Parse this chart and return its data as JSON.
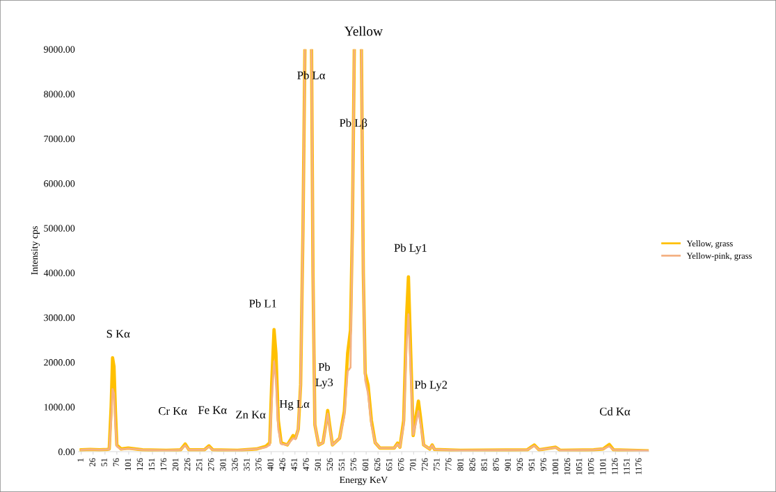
{
  "chart_data": {
    "type": "line",
    "title": "Yellow",
    "xlabel": "Energy KeV",
    "ylabel": "Intensity cps",
    "x": [
      1,
      20,
      40,
      55,
      60,
      64,
      67,
      70,
      73,
      76,
      85,
      100,
      130,
      180,
      210,
      220,
      228,
      260,
      270,
      278,
      330,
      370,
      390,
      398,
      402,
      407,
      411,
      416,
      422,
      435,
      447,
      452,
      458,
      463,
      468,
      472,
      479,
      486,
      489,
      493,
      501,
      510,
      516,
      520,
      524,
      530,
      545,
      555,
      562,
      568,
      572,
      576,
      583,
      591,
      595,
      599,
      605,
      612,
      620,
      630,
      660,
      667,
      672,
      680,
      686,
      690,
      694,
      700,
      706,
      711,
      715,
      722,
      735,
      740,
      745,
      800,
      940,
      955,
      965,
      1000,
      1010,
      1080,
      1100,
      1113,
      1122,
      1196
    ],
    "series": [
      {
        "name": "Yellow, grass",
        "color": "#ffc000",
        "values": [
          40,
          50,
          40,
          50,
          60,
          1000,
          2100,
          1900,
          900,
          150,
          60,
          80,
          40,
          30,
          40,
          170,
          40,
          40,
          130,
          40,
          30,
          60,
          120,
          200,
          1500,
          2730,
          2200,
          700,
          200,
          150,
          360,
          300,
          500,
          1500,
          5000,
          9000,
          null,
          9000,
          4000,
          600,
          150,
          200,
          600,
          920,
          600,
          150,
          300,
          900,
          2200,
          2720,
          5000,
          9000,
          null,
          9000,
          4000,
          1750,
          1490,
          700,
          200,
          80,
          80,
          190,
          100,
          700,
          3000,
          3910,
          2500,
          360,
          800,
          1130,
          800,
          150,
          60,
          150,
          50,
          30,
          40,
          150,
          40,
          100,
          30,
          40,
          60,
          160,
          40,
          20
        ]
      },
      {
        "name": "Yellow-pink, grass",
        "color": "#f4b183",
        "values": [
          40,
          50,
          40,
          50,
          50,
          700,
          1400,
          1300,
          600,
          120,
          50,
          70,
          40,
          30,
          40,
          140,
          40,
          40,
          110,
          40,
          30,
          60,
          100,
          150,
          1100,
          2020,
          1600,
          500,
          170,
          150,
          300,
          280,
          500,
          1500,
          5000,
          9000,
          null,
          9000,
          4000,
          600,
          150,
          200,
          550,
          850,
          550,
          150,
          300,
          800,
          1800,
          1880,
          5000,
          9000,
          null,
          9000,
          4000,
          1600,
          1300,
          600,
          200,
          80,
          80,
          170,
          100,
          600,
          2400,
          3070,
          2000,
          380,
          650,
          910,
          650,
          150,
          60,
          140,
          50,
          30,
          40,
          130,
          40,
          90,
          30,
          40,
          60,
          120,
          40,
          20
        ]
      }
    ],
    "xlim": [
      -5,
      1196
    ],
    "xticks": [
      1,
      26,
      51,
      76,
      101,
      126,
      151,
      176,
      201,
      226,
      251,
      276,
      301,
      326,
      351,
      376,
      401,
      426,
      451,
      476,
      501,
      526,
      551,
      576,
      601,
      626,
      651,
      676,
      701,
      726,
      751,
      776,
      801,
      826,
      851,
      876,
      901,
      926,
      951,
      976,
      1001,
      1026,
      1051,
      1076,
      1101,
      1126,
      1151,
      1176
    ],
    "ylim": [
      0,
      9000
    ],
    "yticks": [
      {
        "value": 0,
        "label": "0.00"
      },
      {
        "value": 1000,
        "label": "1000.00"
      },
      {
        "value": 2000,
        "label": "2000.00"
      },
      {
        "value": 3000,
        "label": "3000.00"
      },
      {
        "value": 4000,
        "label": "4000.00"
      },
      {
        "value": 5000,
        "label": "5000.00"
      },
      {
        "value": 6000,
        "label": "6000.00"
      },
      {
        "value": 7000,
        "label": "7000.00"
      },
      {
        "value": 8000,
        "label": "8000.00"
      },
      {
        "value": 9000,
        "label": "9000.00"
      }
    ],
    "grid": false,
    "legend": "right",
    "marker": "none",
    "line_style": "solid",
    "annotations": [
      {
        "text": "S Kα",
        "x": 67,
        "y": 2100
      },
      {
        "text": "Cr Kα",
        "x": 220,
        "y": 170
      },
      {
        "text": "Fe Kα",
        "x": 270,
        "y": 130
      },
      {
        "text": "Zn Kα",
        "x": 390,
        "y": 120
      },
      {
        "text": "Hg Lα",
        "x": 447,
        "y": 360
      },
      {
        "text": "Pb L1",
        "x": 407,
        "y": 2730
      },
      {
        "text": "Pb Lα",
        "x": 472,
        "y": 9000
      },
      {
        "text": "Pb Lβ",
        "x": 574,
        "y": 7330
      },
      {
        "text": "Pb\nLy3",
        "x": 520,
        "y": 920
      },
      {
        "text": "Pb Ly1",
        "x": 690,
        "y": 3910
      },
      {
        "text": "Pb Ly2",
        "x": 711,
        "y": 1130
      },
      {
        "text": "Cd Kα",
        "x": 1113,
        "y": 160
      }
    ]
  }
}
